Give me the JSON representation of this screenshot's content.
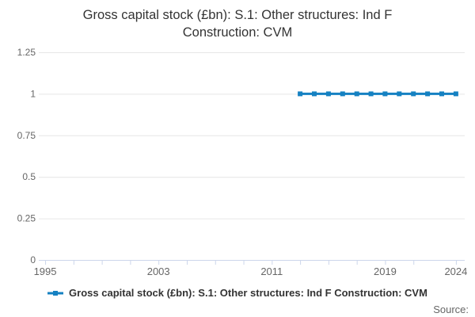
{
  "title": {
    "line1": "Gross capital stock (£bn): S.1: Other structures: Ind F",
    "line2": "Construction: CVM"
  },
  "legend": {
    "items": [
      {
        "label": "Gross capital stock (£bn): S.1: Other structures: Ind F Construction: CVM",
        "symbol": "line-with-square-marker"
      }
    ]
  },
  "source": {
    "label": "Source:"
  },
  "colors": {
    "series": "#1581c2",
    "grid": "#e6e6e6",
    "axis_line": "#ccd6eb",
    "axis_label": "#666666",
    "title": "#333333",
    "legend_text": "#333333",
    "source_text": "#666666",
    "background": "#ffffff"
  },
  "chart_data": {
    "type": "line",
    "title": "Gross capital stock (£bn): S.1: Other structures: Ind F Construction: CVM",
    "xlabel": "",
    "ylabel": "",
    "x": [
      2013,
      2014,
      2015,
      2016,
      2017,
      2018,
      2019,
      2020,
      2021,
      2022,
      2023,
      2024
    ],
    "series": [
      {
        "name": "Gross capital stock (£bn): S.1: Other structures: Ind F Construction: CVM",
        "values": [
          1,
          1,
          1,
          1,
          1,
          1,
          1,
          1,
          1,
          1,
          1,
          1
        ]
      }
    ],
    "marker": "square",
    "line_width": 3,
    "grid": true,
    "legend_position": "bottom",
    "xlim": [
      1994.55,
      2024.62
    ],
    "ylim": [
      0,
      1.25
    ],
    "yticks": [
      0,
      0.25,
      0.5,
      0.75,
      1,
      1.25
    ],
    "ytick_labels": [
      "0",
      "0.25",
      "0.5",
      "0.75",
      "1",
      "1.25"
    ],
    "xticks": [
      1995,
      1997,
      1999,
      2001,
      2003,
      2005,
      2007,
      2009,
      2011,
      2013,
      2015,
      2017,
      2019,
      2021,
      2024
    ],
    "xticks_labeled": [
      1995,
      2003,
      2011,
      2019,
      2024
    ]
  }
}
